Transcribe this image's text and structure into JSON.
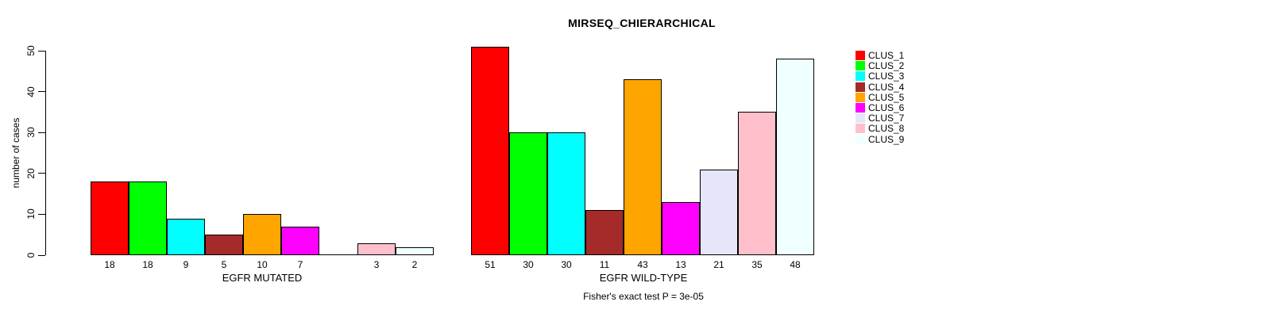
{
  "title": "MIRSEQ_CHIERARCHICAL",
  "chart_data": {
    "type": "bar",
    "title": "MIRSEQ_CHIERARCHICAL",
    "ylabel": "number of cases",
    "xlabel": "",
    "ylim": [
      0,
      50
    ],
    "yticks": [
      0,
      10,
      20,
      30,
      40,
      50
    ],
    "grid": false,
    "legend_position": "right",
    "bar_border_color": "#000000",
    "categories": [
      "CLUS_1",
      "CLUS_2",
      "CLUS_3",
      "CLUS_4",
      "CLUS_5",
      "CLUS_6",
      "CLUS_7",
      "CLUS_8",
      "CLUS_9"
    ],
    "colors": [
      "#FF0000",
      "#00FF00",
      "#00FFFF",
      "#A52A2A",
      "#FFA500",
      "#FF00FF",
      "#E6E6FA",
      "#FFC0CB",
      "#F0FFFF"
    ],
    "groups": [
      {
        "label": "EGFR MUTATED",
        "values": [
          18,
          18,
          9,
          5,
          10,
          7,
          0,
          3,
          2
        ]
      },
      {
        "label": "EGFR WILD-TYPE",
        "values": [
          51,
          30,
          30,
          11,
          43,
          13,
          21,
          35,
          48
        ]
      }
    ],
    "annotation": "Fisher's exact test P = 3e-05"
  },
  "legend": {
    "items": [
      {
        "label": "CLUS_1",
        "color": "#FF0000"
      },
      {
        "label": "CLUS_2",
        "color": "#00FF00"
      },
      {
        "label": "CLUS_3",
        "color": "#00FFFF"
      },
      {
        "label": "CLUS_4",
        "color": "#A52A2A"
      },
      {
        "label": "CLUS_5",
        "color": "#FFA500"
      },
      {
        "label": "CLUS_6",
        "color": "#FF00FF"
      },
      {
        "label": "CLUS_7",
        "color": "#E6E6FA"
      },
      {
        "label": "CLUS_8",
        "color": "#FFC0CB"
      },
      {
        "label": "CLUS_9",
        "color": "#F0FFFF"
      }
    ]
  }
}
